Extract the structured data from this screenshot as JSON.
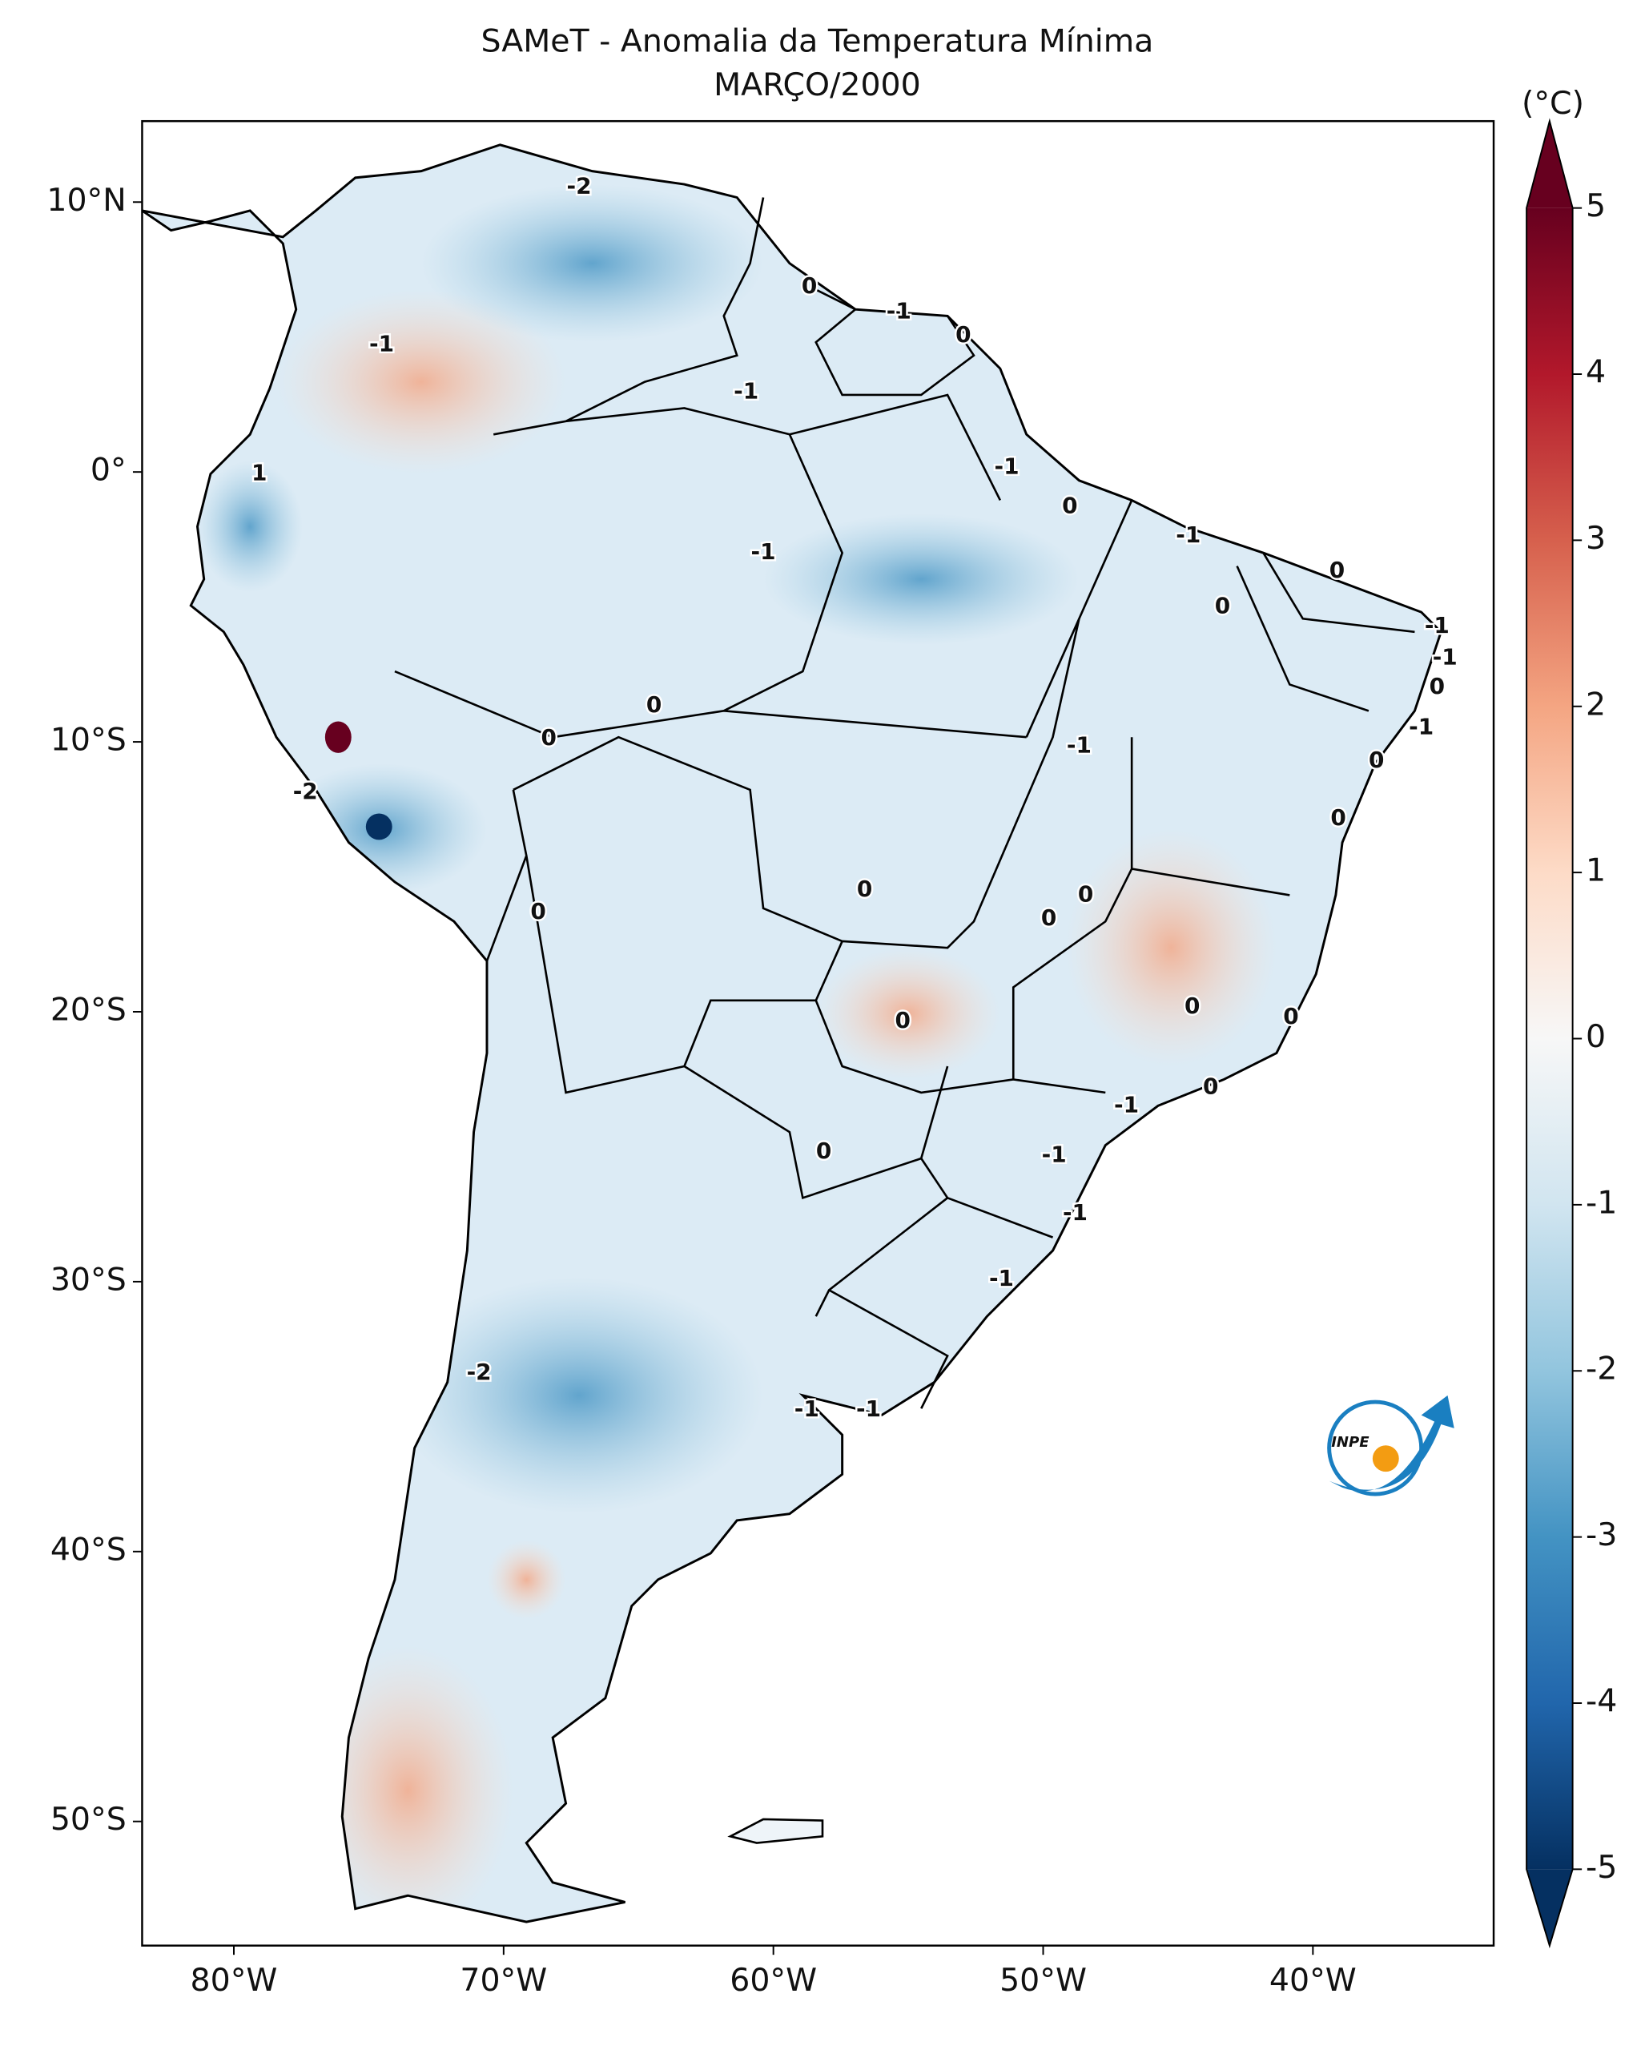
{
  "chart_data": {
    "type": "map",
    "title": "SAMeT - Anomalia da Temperatura Mínima",
    "subtitle": "MARÇO/2000",
    "xlim": [
      -83.4,
      -33.3
    ],
    "ylim": [
      -54.6,
      13
    ],
    "xticks": [
      {
        "value": -80,
        "label": "80°W"
      },
      {
        "value": -70,
        "label": "70°W"
      },
      {
        "value": -60,
        "label": "60°W"
      },
      {
        "value": -50,
        "label": "50°W"
      },
      {
        "value": -40,
        "label": "40°W"
      }
    ],
    "yticks": [
      {
        "value": 10,
        "label": "10°N"
      },
      {
        "value": 0,
        "label": "0°"
      },
      {
        "value": -10,
        "label": "10°S"
      },
      {
        "value": -20,
        "label": "20°S"
      },
      {
        "value": -30,
        "label": "30°S"
      },
      {
        "value": -40,
        "label": "40°S"
      },
      {
        "value": -50,
        "label": "50°S"
      }
    ],
    "colorbar": {
      "label": "(°C)",
      "lim": [
        -5,
        5
      ],
      "ticks": [
        -5,
        -4,
        -3,
        -2,
        -1,
        0,
        1,
        2,
        3,
        4,
        5
      ],
      "colors": [
        "#053061",
        "#2166ac",
        "#4393c3",
        "#92c5de",
        "#d1e5f0",
        "#f7f7f7",
        "#fddbc7",
        "#f4a582",
        "#d6604d",
        "#b2182b",
        "#67001f"
      ]
    },
    "contour_labels": [
      "-2",
      "0",
      "-1",
      "0",
      "-1",
      "-1",
      "1",
      "-1",
      "0",
      "-1",
      "-1",
      "0",
      "0",
      "-1",
      "-1",
      "0",
      "0",
      "-1",
      "0",
      "-1",
      "0",
      "-2",
      "0",
      "0",
      "0",
      "0",
      "0",
      "0",
      "0",
      "0",
      "0",
      "-1",
      "0",
      "-1",
      "-1",
      "-1",
      "-2",
      "-1",
      "-1"
    ],
    "logo": "INPE"
  }
}
